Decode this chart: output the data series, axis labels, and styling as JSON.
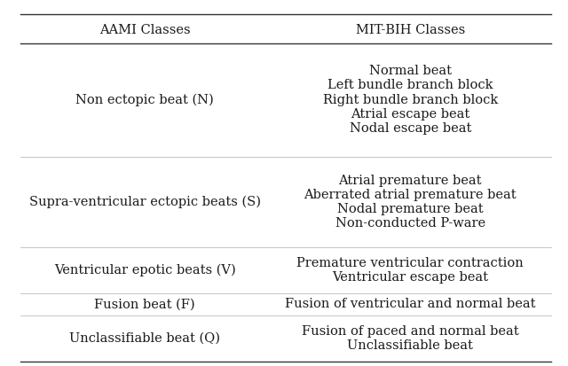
{
  "title_left": "AAMI Classes",
  "title_right": "MIT-BIH Classes",
  "rows": [
    {
      "left": "Non ectopic beat (N)",
      "right": "Normal beat\nLeft bundle branch block\nRight bundle branch block\nAtrial escape beat\nNodal escape beat"
    },
    {
      "left": "Supra-ventricular ectopic beats (S)",
      "right": "Atrial premature beat\nAberrated atrial premature beat\nNodal premature beat\nNon-conducted P-ware"
    },
    {
      "left": "Ventricular epotic beats (V)",
      "right": "Premature ventricular contraction\nVentricular escape beat"
    },
    {
      "left": "Fusion beat (F)",
      "right": "Fusion of ventricular and normal beat"
    },
    {
      "left": "Unclassifiable beat (Q)",
      "right": "Fusion of paced and normal beat\nUnclassifiable beat"
    }
  ],
  "font_size": 10.5,
  "header_font_size": 10.5,
  "bg_color": "#ffffff",
  "text_color": "#1a1a1a",
  "line_color": "#333333",
  "col_divider": 0.45,
  "font_family": "serif"
}
